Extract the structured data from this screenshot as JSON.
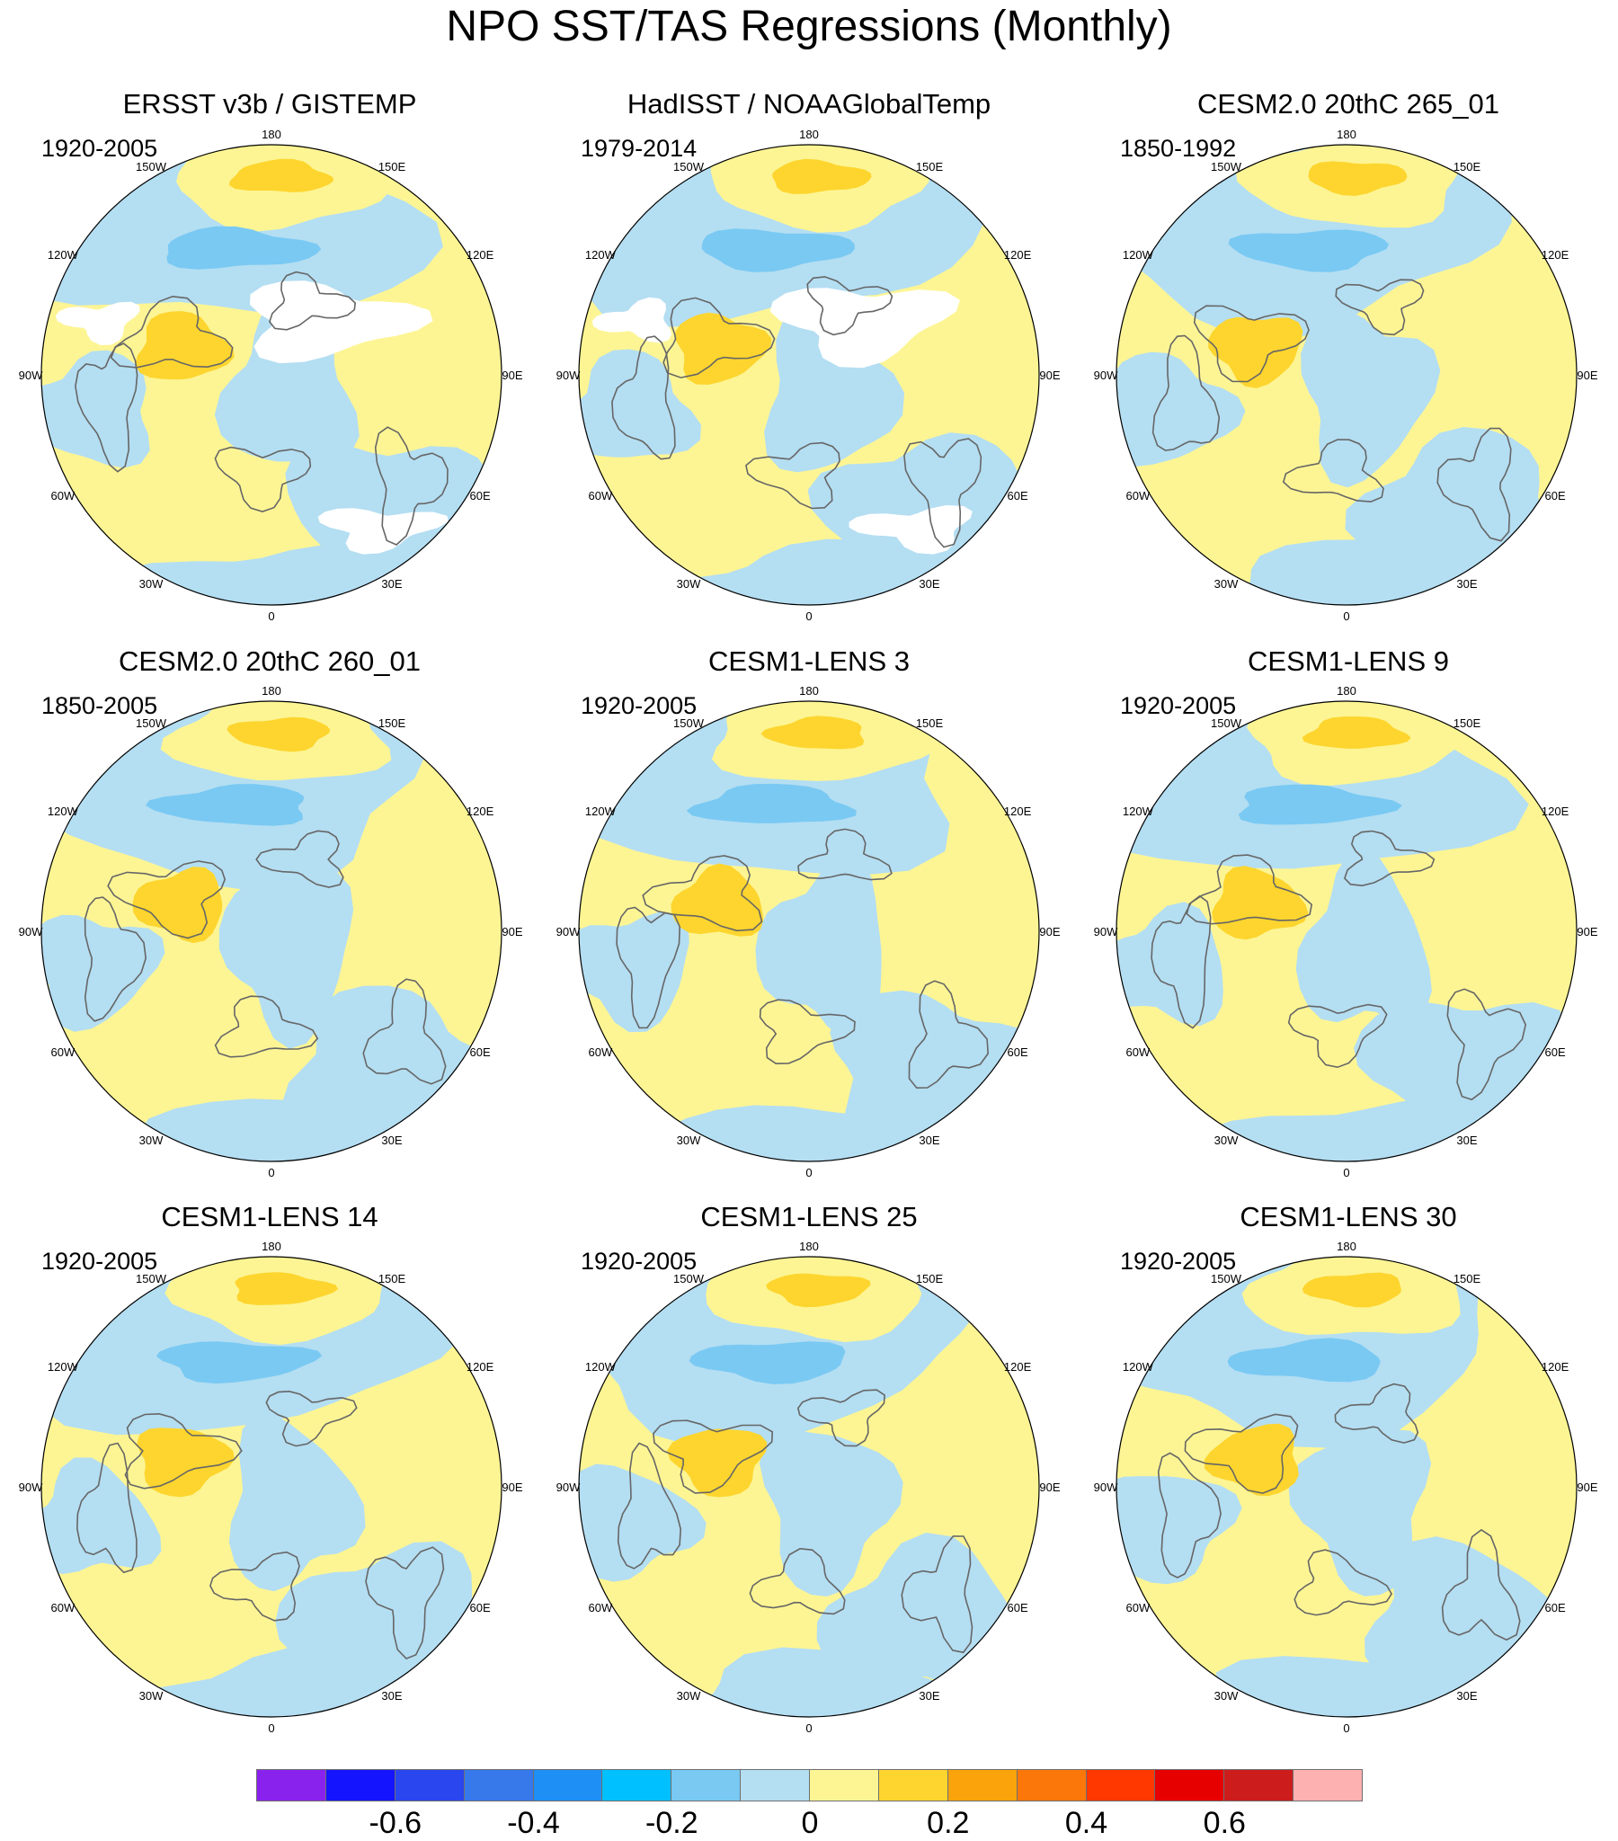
{
  "title": "NPO SST/TAS Regressions (Monthly)",
  "lon_labels": [
    "180",
    "150E",
    "120E",
    "90E",
    "60E",
    "30E",
    "0",
    "30W",
    "60W",
    "90W",
    "120W",
    "150W"
  ],
  "panels": [
    {
      "title": "ERSST v3b / GISTEMP",
      "period": "1920-2005",
      "missing_data": true
    },
    {
      "title": "HadISST / NOAAGlobalTemp",
      "period": "1979-2014",
      "missing_data": true
    },
    {
      "title": "CESM2.0 20thC 265_01",
      "period": "1850-1992",
      "missing_data": false
    },
    {
      "title": "CESM2.0 20thC 260_01",
      "period": "1850-2005",
      "missing_data": false
    },
    {
      "title": "CESM1-LENS 3",
      "period": "1920-2005",
      "missing_data": false
    },
    {
      "title": "CESM1-LENS 9",
      "period": "1920-2005",
      "missing_data": false
    },
    {
      "title": "CESM1-LENS 14",
      "period": "1920-2005",
      "missing_data": false
    },
    {
      "title": "CESM1-LENS 25",
      "period": "1920-2005",
      "missing_data": false
    },
    {
      "title": "CESM1-LENS 30",
      "period": "1920-2005",
      "missing_data": false
    }
  ],
  "colorbar": {
    "colors": [
      "#8a22ee",
      "#1414ff",
      "#2a46ee",
      "#3778ea",
      "#1e8ff4",
      "#00c0ff",
      "#79c9f3",
      "#b4def2",
      "#fdf594",
      "#fdd52e",
      "#fba30a",
      "#fc770a",
      "#ff3800",
      "#e60000",
      "#cc1c1c",
      "#fdb1b1"
    ],
    "labels": [
      "-0.6",
      "-0.4",
      "-0.2",
      "0",
      "0.2",
      "0.4",
      "0.6"
    ],
    "label_values": [
      -0.6,
      -0.4,
      -0.2,
      0,
      0.2,
      0.4,
      0.6
    ],
    "label_boundary_index": [
      2,
      4,
      6,
      8,
      10,
      12,
      14
    ]
  },
  "palette": {
    "pos_weak": "#fdf594",
    "pos_moderate": "#fdd52e",
    "neg_weak": "#b4def2",
    "neg_moderate": "#79c9f3",
    "missing": "#ffffff",
    "coast": "#666666"
  }
}
